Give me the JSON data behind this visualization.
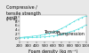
{
  "title_line1": "Compressive /",
  "title_line2": "tensile strength",
  "title_line3": "(MPa)",
  "xlabel": "Foam density (kg m⁻³)",
  "xlim": [
    200,
    1000
  ],
  "ylim": [
    -1.5,
    11
  ],
  "yticks": [
    0,
    2,
    4,
    6,
    8,
    10
  ],
  "xticks": [
    200,
    300,
    400,
    500,
    600,
    700,
    800,
    900,
    1000
  ],
  "tension_x": [
    200,
    250,
    300,
    350,
    400,
    450,
    500,
    550,
    600,
    650,
    700,
    750,
    800,
    850,
    900,
    950,
    1000
  ],
  "tension_y": [
    0.3,
    0.5,
    0.7,
    0.9,
    1.1,
    1.4,
    1.8,
    2.3,
    2.9,
    3.6,
    4.5,
    5.5,
    6.7,
    7.8,
    8.9,
    9.8,
    10.5
  ],
  "compression_x": [
    200,
    250,
    300,
    350,
    400,
    450,
    500,
    550,
    600,
    650,
    700,
    750,
    800,
    850,
    900,
    950,
    1000
  ],
  "compression_y": [
    0.1,
    0.15,
    0.2,
    0.3,
    0.4,
    0.5,
    0.65,
    0.85,
    1.1,
    1.4,
    1.8,
    2.3,
    2.9,
    3.5,
    4.3,
    5.2,
    6.3
  ],
  "line_color": "#55DDDD",
  "marker": "o",
  "marker_size": 1.0,
  "tension_label": "Tension",
  "compression_label": "Compression",
  "label_fontsize": 3.5,
  "tick_fontsize": 3.0,
  "title_fontsize": 3.5,
  "bg_color": "#e8e8e8",
  "plot_bg": "#ffffff"
}
